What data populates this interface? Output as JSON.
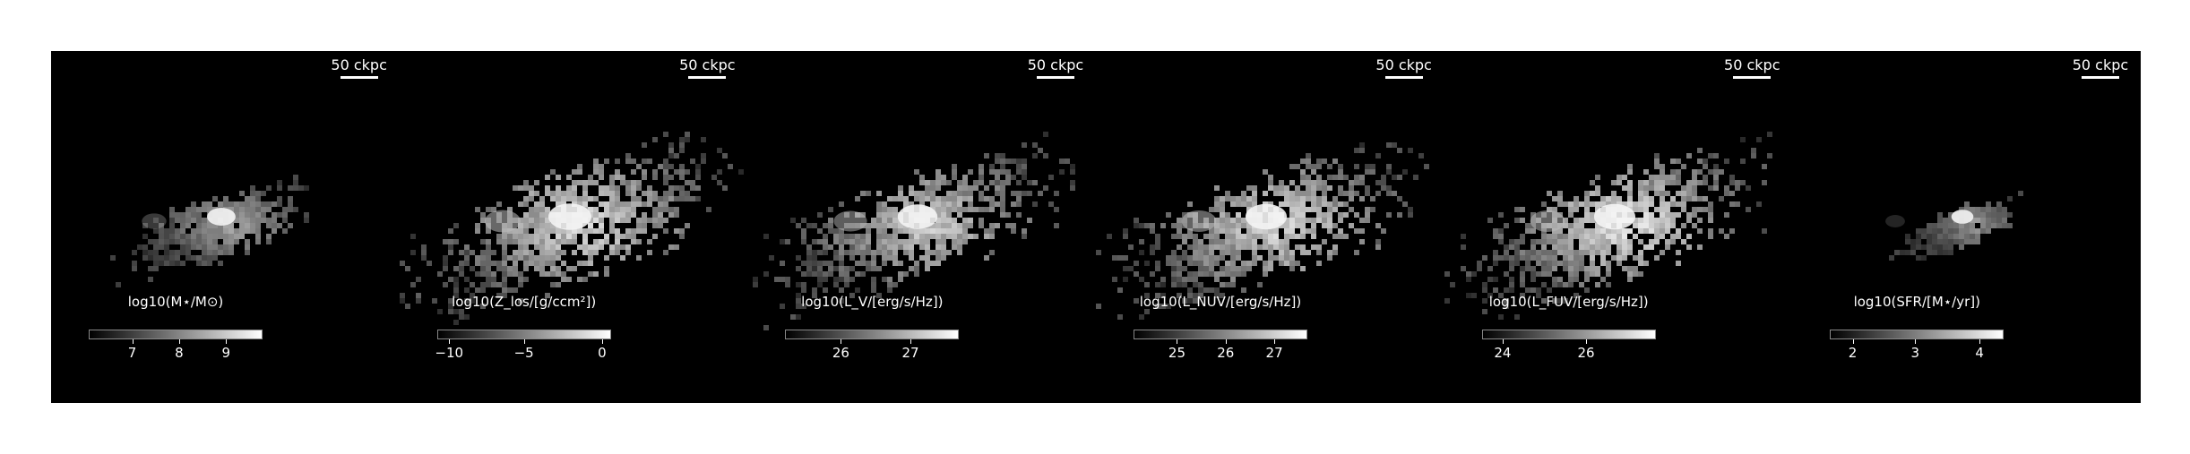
{
  "scale_label": "50 ckpc",
  "panels": [
    {
      "id": "mass",
      "cbar_label": "log10(M⋆/M⊙)",
      "ticks": [
        {
          "label": "7",
          "frac": 0.25
        },
        {
          "label": "8",
          "frac": 0.52
        },
        {
          "label": "9",
          "frac": 0.79
        }
      ],
      "brightness": 0.55,
      "spread": 0.55
    },
    {
      "id": "metal",
      "cbar_label": "log10(Z_los/[g/ccm²])",
      "ticks": [
        {
          "label": "−10",
          "frac": 0.07
        },
        {
          "label": "−5",
          "frac": 0.5
        },
        {
          "label": "0",
          "frac": 0.95
        }
      ],
      "brightness": 0.8,
      "spread": 1.0
    },
    {
      "id": "lv",
      "cbar_label": "log10(L_V/[erg/s/Hz])",
      "ticks": [
        {
          "label": "26",
          "frac": 0.32
        },
        {
          "label": "27",
          "frac": 0.72
        }
      ],
      "brightness": 0.75,
      "spread": 0.9
    },
    {
      "id": "lnuv",
      "cbar_label": "log10(L_NUV/[erg/s/Hz])",
      "ticks": [
        {
          "label": "25",
          "frac": 0.25
        },
        {
          "label": "26",
          "frac": 0.53
        },
        {
          "label": "27",
          "frac": 0.81
        }
      ],
      "brightness": 0.8,
      "spread": 0.95
    },
    {
      "id": "lfuv",
      "cbar_label": "log10(L_FUV/[erg/s/Hz])",
      "ticks": [
        {
          "label": "24",
          "frac": 0.12
        },
        {
          "label": "26",
          "frac": 0.6
        }
      ],
      "brightness": 0.85,
      "spread": 0.95
    },
    {
      "id": "sfr",
      "cbar_label": "log10(SFR/[M⋆/yr])",
      "ticks": [
        {
          "label": "2",
          "frac": 0.13
        },
        {
          "label": "3",
          "frac": 0.49
        },
        {
          "label": "4",
          "frac": 0.86
        }
      ],
      "brightness": 0.5,
      "spread": 0.35
    }
  ]
}
